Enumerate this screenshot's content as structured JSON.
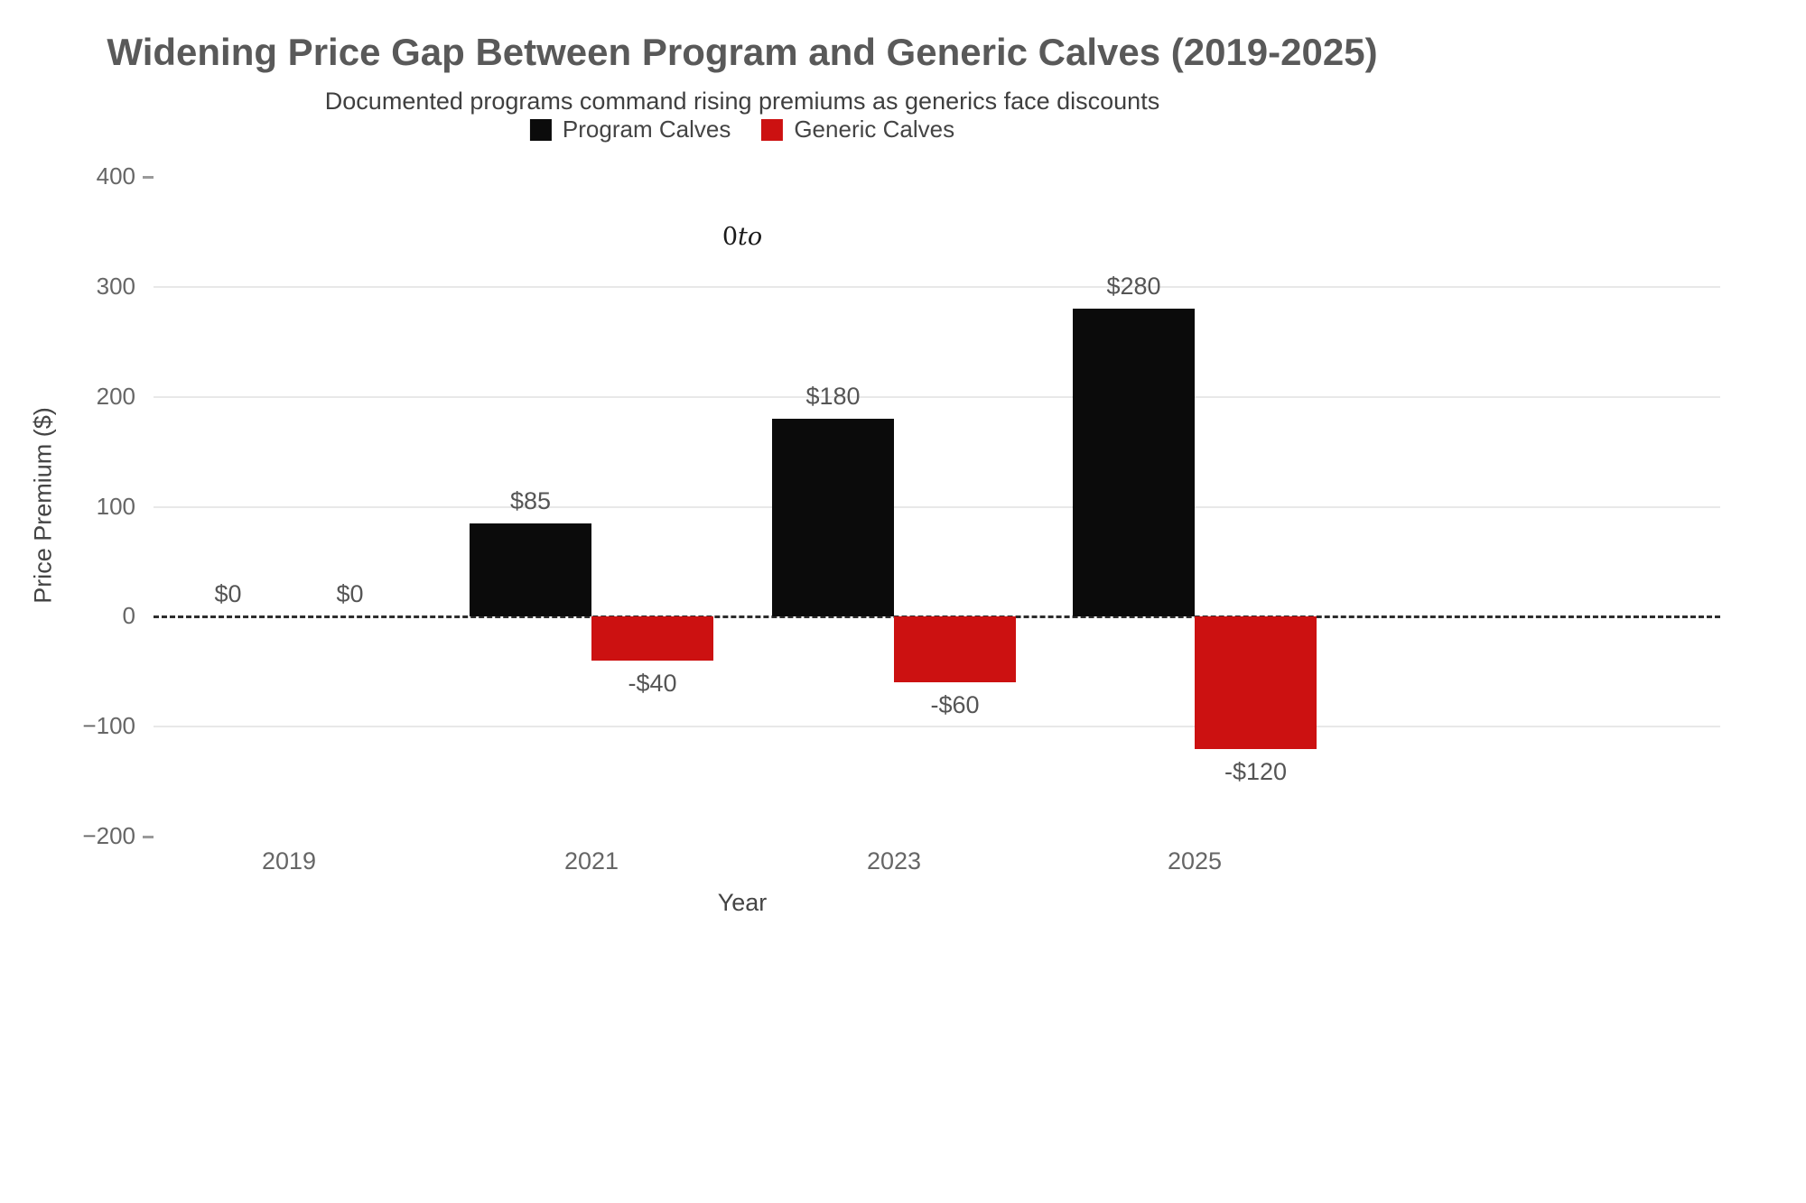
{
  "header": {
    "title": "Widening Price Gap Between Program and Generic Calves (2019-2025)",
    "subtitle": "Documented programs command rising premiums as generics face discounts"
  },
  "annotation": {
    "prefix": "0",
    "word": "to"
  },
  "axes": {
    "y_title": "Price Premium ($)",
    "x_title": "Year",
    "y_tick_values": [
      400,
      300,
      200,
      100,
      0,
      -100,
      -200
    ],
    "y_tick_labels": [
      "400",
      "300",
      "200",
      "100",
      "0",
      "−100",
      "−200"
    ]
  },
  "chart_data": {
    "type": "bar",
    "title": "Widening Price Gap Between Program and Generic Calves (2019-2025)",
    "subtitle": "Documented programs command rising premiums as generics face discounts",
    "xlabel": "Year",
    "ylabel": "Price Premium ($)",
    "categories": [
      "2019",
      "2021",
      "2023",
      "2025"
    ],
    "series": [
      {
        "name": "Program Calves",
        "color": "#0b0b0b",
        "values": [
          0,
          85,
          180,
          280
        ],
        "value_labels": [
          "$0",
          "$85",
          "$180",
          "$280"
        ]
      },
      {
        "name": "Generic Calves",
        "color": "#cc1111",
        "values": [
          0,
          -40,
          -60,
          -120
        ],
        "value_labels": [
          "$0",
          "-$40",
          "-$60",
          "-$120"
        ]
      }
    ],
    "ylim": [
      -200,
      400
    ],
    "y_tick_step": 100,
    "grid": true,
    "legend_position": "top",
    "zero_line": "dashed"
  }
}
